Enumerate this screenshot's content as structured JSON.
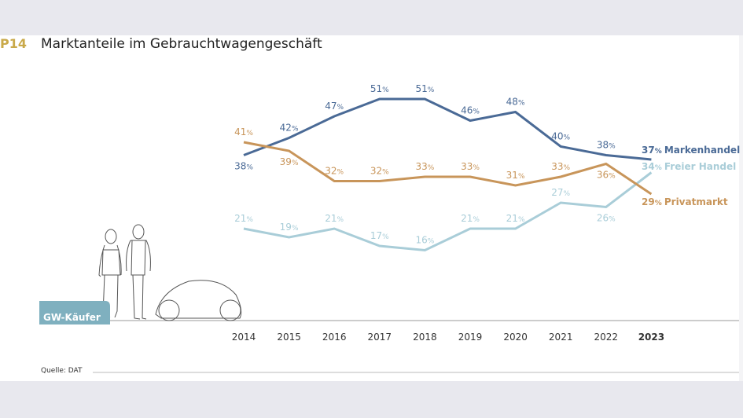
{
  "header": {
    "code": "P14",
    "title": "Marktanteile im Gebrauchtwagengeschäft"
  },
  "badge": "GW-Käufer",
  "source": "Quelle: DAT",
  "chart_data": {
    "type": "line",
    "title": "Marktanteile im Gebrauchtwagengeschäft",
    "categories": [
      "2014",
      "2015",
      "2016",
      "2017",
      "2018",
      "2019",
      "2020",
      "2021",
      "2022",
      "2023"
    ],
    "unit": "%",
    "ylim": [
      15,
      52
    ],
    "grid": false,
    "legend": "right, end-of-line labels",
    "series": [
      {
        "name": "Markenhandel",
        "color": "#4a6a96",
        "values": [
          38,
          42,
          47,
          51,
          51,
          46,
          48,
          40,
          38,
          37
        ]
      },
      {
        "name": "Freier Handel",
        "color": "#a9cdd8",
        "values": [
          21,
          19,
          21,
          17,
          16,
          21,
          21,
          27,
          26,
          34
        ]
      },
      {
        "name": "Privatmarkt",
        "color": "#c8955a",
        "values": [
          41,
          39,
          32,
          32,
          33,
          33,
          31,
          33,
          36,
          29
        ]
      }
    ]
  }
}
